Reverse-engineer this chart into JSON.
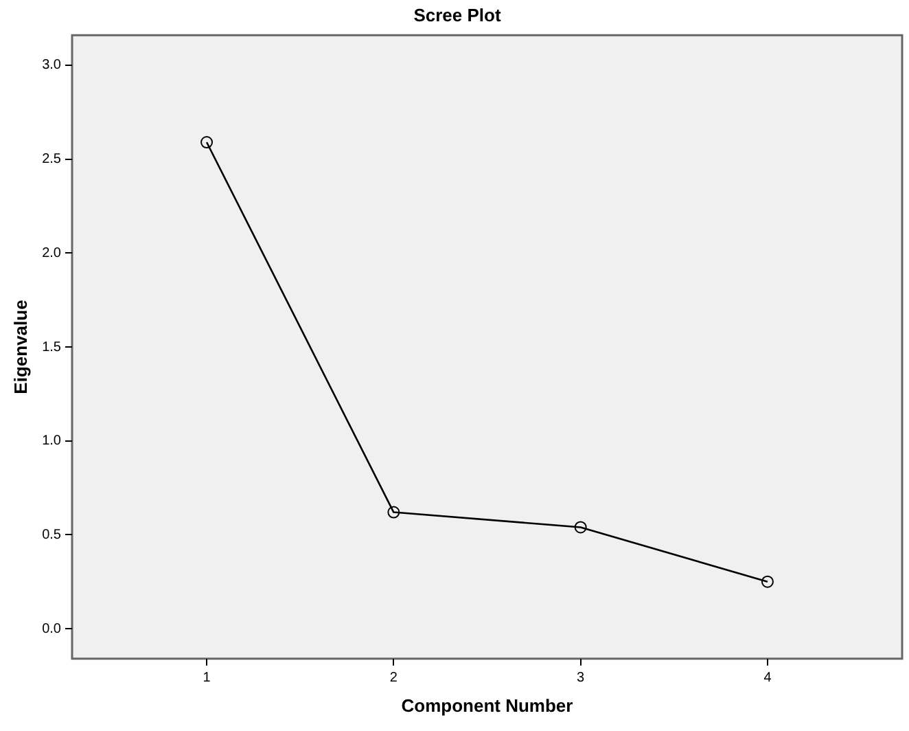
{
  "chart_data": {
    "type": "line",
    "title": "Scree Plot",
    "xlabel": "Component Number",
    "ylabel": "Eigenvalue",
    "x": [
      1,
      2,
      3,
      4
    ],
    "series": [
      {
        "color": "#000000",
        "values": [
          2.59,
          0.62,
          0.54,
          0.25
        ]
      }
    ],
    "xlim": [
      0.28,
      4.72
    ],
    "xticks": [
      1,
      2,
      3,
      4
    ],
    "ylim": [
      -0.16,
      3.16
    ],
    "yticks": [
      {
        "value": 0,
        "label": "0.0"
      },
      {
        "value": 0.5,
        "label": "0.5"
      },
      {
        "value": 1,
        "label": "1.0"
      },
      {
        "value": 1.5,
        "label": "1.5"
      },
      {
        "value": 2,
        "label": "2.0"
      },
      {
        "value": 2.5,
        "label": "2.5"
      },
      {
        "value": 3,
        "label": "3.0"
      }
    ],
    "grid": false,
    "legend": false,
    "marker": "circle",
    "line_style": "solid"
  }
}
